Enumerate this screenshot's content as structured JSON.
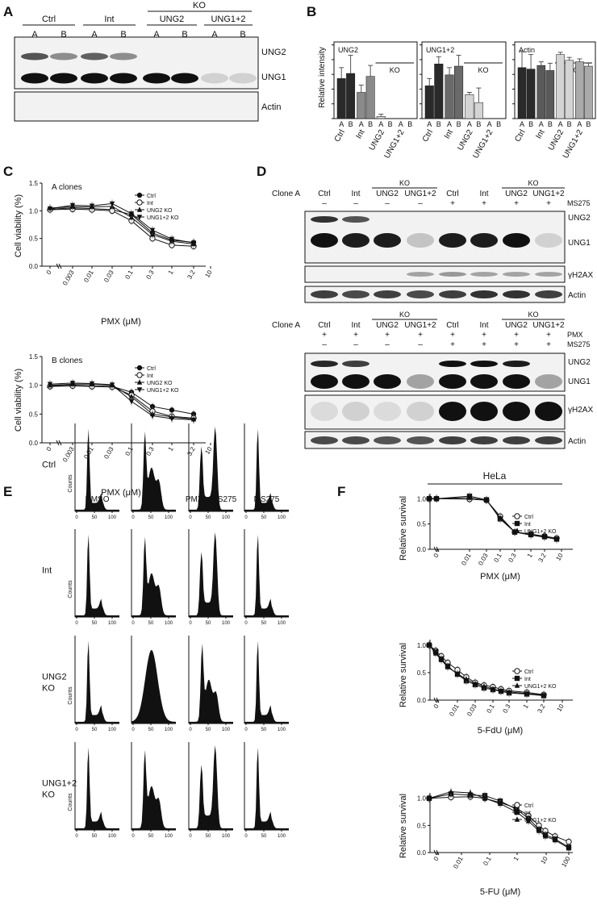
{
  "panels": {
    "A": {
      "label": "A",
      "group_top": "KO",
      "groups": [
        "Ctrl",
        "Int",
        "UNG2",
        "UNG1+2"
      ],
      "lanes": [
        "A",
        "B",
        "A",
        "B",
        "A",
        "B",
        "A",
        "B"
      ],
      "blot_labels": [
        "UNG2",
        "UNG1",
        "Actin"
      ],
      "band_intensity": {
        "UNG2": [
          0.7,
          0.45,
          0.65,
          0.45,
          0.0,
          0.0,
          0.0,
          0.0
        ],
        "UNG1": [
          1.0,
          1.0,
          1.0,
          1.0,
          1.0,
          1.0,
          0.15,
          0.15
        ],
        "Actin": [
          0.85,
          0.85,
          0.85,
          0.85,
          0.85,
          0.85,
          0.85,
          0.85
        ]
      }
    },
    "B": {
      "label": "B",
      "ylabel": "Relative intensity",
      "ko_label": "KO",
      "x_categories": [
        "Ctrl",
        "Int",
        "UNG2",
        "UNG1+2"
      ],
      "lane_labels": [
        "A",
        "B"
      ],
      "chart_data": [
        {
          "type": "bar",
          "title": "UNG2",
          "categories": [
            "Ctrl A",
            "Ctrl B",
            "Int A",
            "Int B",
            "UNG2 A",
            "UNG2 B",
            "UNG1+2 A",
            "UNG1+2 B"
          ],
          "values": [
            0.55,
            0.62,
            0.36,
            0.58,
            0.03,
            0.0,
            0.0,
            0.0
          ],
          "errors": [
            0.15,
            0.25,
            0.1,
            0.15,
            0.03,
            0.0,
            0.0,
            0.0
          ],
          "ylim": [
            0,
            1
          ]
        },
        {
          "type": "bar",
          "title": "UNG1+2",
          "categories": [
            "Ctrl A",
            "Ctrl B",
            "Int A",
            "Int B",
            "UNG2 A",
            "UNG2 B",
            "UNG1+2 A",
            "UNG1+2 B"
          ],
          "values": [
            0.45,
            0.75,
            0.6,
            0.72,
            0.33,
            0.22,
            0.0,
            0.0
          ],
          "errors": [
            0.1,
            0.1,
            0.1,
            0.15,
            0.03,
            0.2,
            0.0,
            0.0
          ],
          "ylim": [
            0,
            1
          ]
        },
        {
          "type": "bar",
          "title": "Actin",
          "categories": [
            "Ctrl A",
            "Ctrl B",
            "Int A",
            "Int B",
            "UNG2 A",
            "UNG2 B",
            "UNG1+2 A",
            "UNG1+2 B"
          ],
          "values": [
            0.7,
            0.68,
            0.73,
            0.66,
            0.88,
            0.8,
            0.78,
            0.72
          ],
          "errors": [
            0.22,
            0.2,
            0.05,
            0.1,
            0.03,
            0.04,
            0.04,
            0.04
          ],
          "ylim": [
            0,
            1
          ]
        }
      ]
    },
    "C": {
      "label": "C",
      "ylabel": "Cell viability (%)",
      "xlabel": "PMX (μM)",
      "x_ticks": [
        "0",
        "0.003",
        "0.01",
        "0.03",
        "0.1",
        "0.3",
        "1",
        "3.2",
        "10"
      ],
      "y_ticks": [
        "0.0",
        "0.5",
        "1.0",
        "1.5"
      ],
      "chart_data": [
        {
          "type": "line",
          "title": "A clones",
          "x": [
            "0",
            "0.003",
            "0.01",
            "0.03",
            "0.1",
            "0.3",
            "1",
            "3.2"
          ],
          "series": [
            {
              "name": "Ctrl",
              "marker": "filled-circle",
              "values": [
                1.03,
                1.05,
                1.04,
                1.02,
                0.93,
                0.6,
                0.47,
                0.43
              ]
            },
            {
              "name": "Int",
              "marker": "open-circle",
              "values": [
                1.02,
                1.03,
                1.02,
                1.0,
                0.82,
                0.5,
                0.38,
                0.36
              ]
            },
            {
              "name": "UNG2 KO",
              "marker": "filled-triangle-up",
              "values": [
                1.05,
                1.07,
                1.07,
                1.08,
                0.88,
                0.57,
                0.45,
                0.4
              ]
            },
            {
              "name": "UNG1+2 KO",
              "marker": "filled-triangle-down",
              "values": [
                1.04,
                1.1,
                1.09,
                1.13,
                0.95,
                0.65,
                0.49,
                0.42
              ]
            }
          ],
          "ylim": [
            0,
            1.5
          ]
        },
        {
          "type": "line",
          "title": "B clones",
          "x": [
            "0",
            "0.003",
            "0.01",
            "0.03",
            "0.1",
            "0.3",
            "1",
            "3.2"
          ],
          "series": [
            {
              "name": "Ctrl",
              "marker": "filled-circle",
              "values": [
                0.99,
                1.0,
                0.99,
                0.98,
                0.88,
                0.63,
                0.57,
                0.5
              ]
            },
            {
              "name": "Int",
              "marker": "open-circle",
              "values": [
                0.98,
                0.99,
                0.98,
                0.97,
                0.83,
                0.55,
                0.46,
                0.43
              ]
            },
            {
              "name": "UNG2 KO",
              "marker": "filled-triangle-up",
              "values": [
                1.0,
                1.02,
                1.02,
                1.0,
                0.8,
                0.5,
                0.45,
                0.41
              ]
            },
            {
              "name": "UNG1+2 KO",
              "marker": "filled-triangle-down",
              "values": [
                1.02,
                1.04,
                1.03,
                1.01,
                0.72,
                0.47,
                0.42,
                0.4
              ]
            }
          ],
          "ylim": [
            0,
            1.5
          ]
        }
      ]
    },
    "D": {
      "label": "D",
      "clone_label": "Clone A",
      "ko_label": "KO",
      "top": {
        "lanes": [
          "Ctrl",
          "Int",
          "UNG2",
          "UNG1+2",
          "Ctrl",
          "Int",
          "UNG2",
          "UNG1+2"
        ],
        "treatments": [
          {
            "name": "MS275",
            "signs": [
              "–",
              "–",
              "–",
              "–",
              "+",
              "+",
              "+",
              "+"
            ]
          }
        ],
        "blot_labels": [
          "UNG2",
          "UNG1",
          "γH2AX",
          "Actin"
        ],
        "band_intensity": {
          "UNG2": [
            0.85,
            0.7,
            0,
            0,
            0,
            0,
            0,
            0
          ],
          "UNG1": [
            1,
            0.95,
            0.95,
            0.2,
            0.95,
            0.95,
            1,
            0.15
          ],
          "γH2AX": [
            0,
            0,
            0,
            0.35,
            0.4,
            0.35,
            0.35,
            0.35
          ],
          "Actin": [
            0.8,
            0.75,
            0.8,
            0.75,
            0.8,
            0.85,
            0.85,
            0.8
          ]
        }
      },
      "bottom": {
        "lanes": [
          "Ctrl",
          "Int",
          "UNG2",
          "UNG1+2",
          "Ctrl",
          "Int",
          "UNG2",
          "UNG1+2"
        ],
        "treatments": [
          {
            "name": "PMX",
            "signs": [
              "+",
              "+",
              "+",
              "+",
              "+",
              "+",
              "+",
              "+"
            ]
          },
          {
            "name": "MS275",
            "signs": [
              "–",
              "–",
              "–",
              "–",
              "+",
              "+",
              "+",
              "+"
            ]
          }
        ],
        "blot_labels": [
          "UNG2",
          "UNG1",
          "γH2AX",
          "Actin"
        ],
        "band_intensity": {
          "UNG2": [
            0.9,
            0.8,
            0,
            0,
            1,
            1,
            0.95,
            0
          ],
          "UNG1": [
            1,
            1,
            1,
            0.35,
            1,
            1,
            1,
            0.35
          ],
          "γH2AX": [
            0.1,
            0.15,
            0.1,
            0.15,
            1,
            1,
            1,
            1
          ],
          "Actin": [
            0.75,
            0.75,
            0.7,
            0.7,
            0.8,
            0.8,
            0.8,
            0.8
          ]
        }
      }
    },
    "E": {
      "label": "E",
      "columns": [
        "DMSO",
        "PMX",
        "PMX→MS275",
        "MS275"
      ],
      "rows": [
        "Ctrl",
        "Int",
        "UNG2\nKO",
        "UNG1+2\nKO"
      ],
      "ylabel": "Counts",
      "x_ticks": [
        "0",
        "50",
        "100"
      ],
      "profiles": [
        [
          "g1",
          "spread",
          "bimodal",
          "g1"
        ],
        [
          "g1",
          "spread",
          "bimodal",
          "g1"
        ],
        [
          "g1",
          "broad",
          "spread",
          "g1"
        ],
        [
          "g1",
          "spread",
          "bimodal",
          "g1"
        ]
      ]
    },
    "F": {
      "label": "F",
      "header": "HeLa",
      "ylabel": "Relative survival",
      "y_ticks": [
        "0.0",
        "0.5",
        "1.0"
      ],
      "chart_data": [
        {
          "type": "line",
          "xlabel": "PMX (μM)",
          "x_ticks": [
            "0",
            "0.01",
            "0.03",
            "0.1",
            "0.3",
            "1",
            "3.2",
            "10"
          ],
          "x": [
            "0",
            "0.003",
            "0.01",
            "0.03",
            "0.1",
            "0.3",
            "1",
            "3.2",
            "6"
          ],
          "series": [
            {
              "name": "Ctrl",
              "marker": "open-circle",
              "values": [
                1.0,
                1.0,
                0.99,
                0.97,
                0.65,
                0.34,
                0.3,
                0.26,
                0.22
              ]
            },
            {
              "name": "Int",
              "marker": "filled-square",
              "values": [
                1.0,
                1.0,
                1.05,
                0.98,
                0.6,
                0.34,
                0.29,
                0.25,
                0.2
              ]
            },
            {
              "name": "UNG1+2 KO",
              "marker": "filled-triangle-up",
              "values": [
                1.0,
                1.0,
                1.02,
                0.97,
                0.62,
                0.34,
                0.28,
                0.24,
                0.2
              ]
            }
          ],
          "ylim": [
            0,
            1.1
          ]
        },
        {
          "type": "line",
          "xlabel": "5-FdU (μM)",
          "x_ticks": [
            "0",
            "0.01",
            "0.03",
            "0.1",
            "0.3",
            "1",
            "3.2",
            "10"
          ],
          "x": [
            "0",
            "0.003",
            "0.006",
            "0.01",
            "0.02",
            "0.04",
            "0.08",
            "0.16",
            "0.3",
            "0.6",
            "1.2",
            "2.4",
            "4.8"
          ],
          "series": [
            {
              "name": "Ctrl",
              "marker": "open-circle",
              "values": [
                1.0,
                0.9,
                0.8,
                0.68,
                0.55,
                0.42,
                0.32,
                0.27,
                0.24,
                0.2,
                0.17,
                0.14,
                0.1
              ]
            },
            {
              "name": "Int",
              "marker": "filled-square",
              "values": [
                1.0,
                0.88,
                0.75,
                0.62,
                0.47,
                0.35,
                0.28,
                0.22,
                0.19,
                0.16,
                0.13,
                0.11,
                0.08
              ]
            },
            {
              "name": "UNG1+2 KO",
              "marker": "filled-triangle-up",
              "values": [
                1.0,
                0.85,
                0.73,
                0.6,
                0.48,
                0.38,
                0.3,
                0.25,
                0.2,
                0.17,
                0.15,
                0.12,
                0.09
              ]
            }
          ],
          "ylim": [
            0,
            1.1
          ]
        },
        {
          "type": "line",
          "xlabel": "5-FU (μM)",
          "x_ticks": [
            "0",
            "0.01",
            "0.1",
            "1",
            "10",
            "100"
          ],
          "x": [
            "0",
            "0.02",
            "0.06",
            "0.15",
            "0.4",
            "1",
            "2",
            "5",
            "10",
            "25",
            "100"
          ],
          "series": [
            {
              "name": "Ctrl",
              "marker": "open-circle",
              "values": [
                1.0,
                1.02,
                1.03,
                1.0,
                0.92,
                0.82,
                0.68,
                0.5,
                0.4,
                0.3,
                0.2
              ]
            },
            {
              "name": "Int",
              "marker": "filled-square",
              "values": [
                1.0,
                1.08,
                1.06,
                1.05,
                0.95,
                0.8,
                0.63,
                0.43,
                0.33,
                0.25,
                0.1
              ]
            },
            {
              "name": "UNG1+2 KO",
              "marker": "filled-triangle-up",
              "values": [
                1.0,
                1.12,
                1.1,
                1.0,
                0.9,
                0.75,
                0.58,
                0.4,
                0.3,
                0.23,
                0.08
              ]
            }
          ],
          "ylim": [
            0,
            1.1
          ]
        }
      ]
    }
  },
  "colors": {
    "ink": "#111111",
    "blot_bg": "#f2f2f2",
    "band": "#111111",
    "bar_dark": "#2a2a2a",
    "bar_mid": "#8a8a8a",
    "bar_light": "#d4d4d4",
    "hist": "#111111"
  }
}
